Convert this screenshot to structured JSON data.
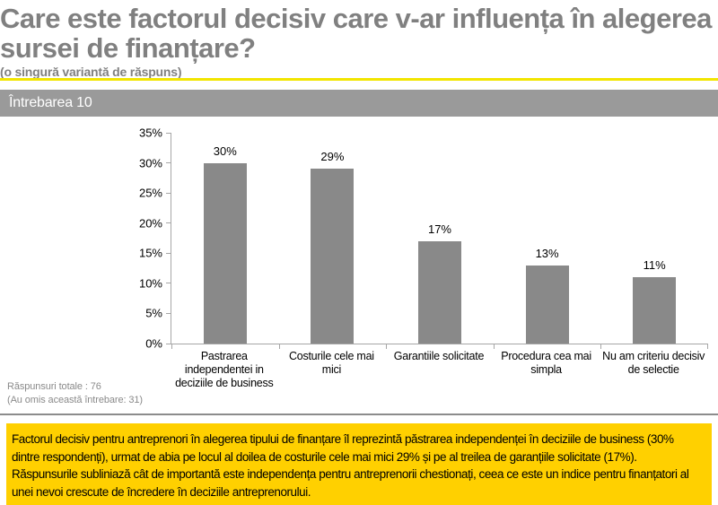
{
  "header": {
    "title_lines": [
      "Care este factorul decisiv care v-ar influența în alegerea",
      "sursei de finanțare?"
    ],
    "subtitle": "(o singură variantă de răspuns)"
  },
  "question_band": {
    "label": "Întrebarea 10"
  },
  "chart_data": {
    "type": "bar",
    "title": "Întrebarea 10",
    "categories": [
      "Pastrarea independentei in deciziile de business",
      "Costurile cele mai mici",
      "Garantiile solicitate",
      "Procedura cea mai simpla",
      "Nu am criteriu decisiv de selectie"
    ],
    "values": [
      30,
      29,
      17,
      13,
      11
    ],
    "value_labels": [
      "30%",
      "29%",
      "17%",
      "13%",
      "11%"
    ],
    "xlabel": "",
    "ylabel": "",
    "ylim": [
      0,
      35
    ],
    "ytick_step": 5,
    "ytick_labels": [
      "0%",
      "5%",
      "10%",
      "15%",
      "20%",
      "25%",
      "30%",
      "35%"
    ],
    "grid": false,
    "legend": false,
    "bar_color": "#898989"
  },
  "footnotes": {
    "total": "Răspunsuri totale : 76",
    "omitted": "(Au omis această întrebare: 31)"
  },
  "summary_box": {
    "text": "Factorul decisiv pentru antreprenori în alegerea tipului de finanțare îl reprezintă păstrarea independenței în deciziile de business (30% dintre respondenți), urmat de abia pe locul al doilea de costurile cele mai mici 29% și pe al treilea de garanțiile solicitate (17%). Răspunsurile subliniază cât de importantă este independența pentru antreprenorii chestionați, ceea ce este un indice pentru finanțatori al unei nevoi crescute de încredere în deciziile antreprenorului."
  },
  "colors": {
    "title_gray": "#808080",
    "accent_yellow": "#F2E500",
    "band_gray": "#9A9A9A",
    "bar_gray": "#898989",
    "axis_gray": "#A6A6A6",
    "box_yellow": "#FFD000"
  }
}
